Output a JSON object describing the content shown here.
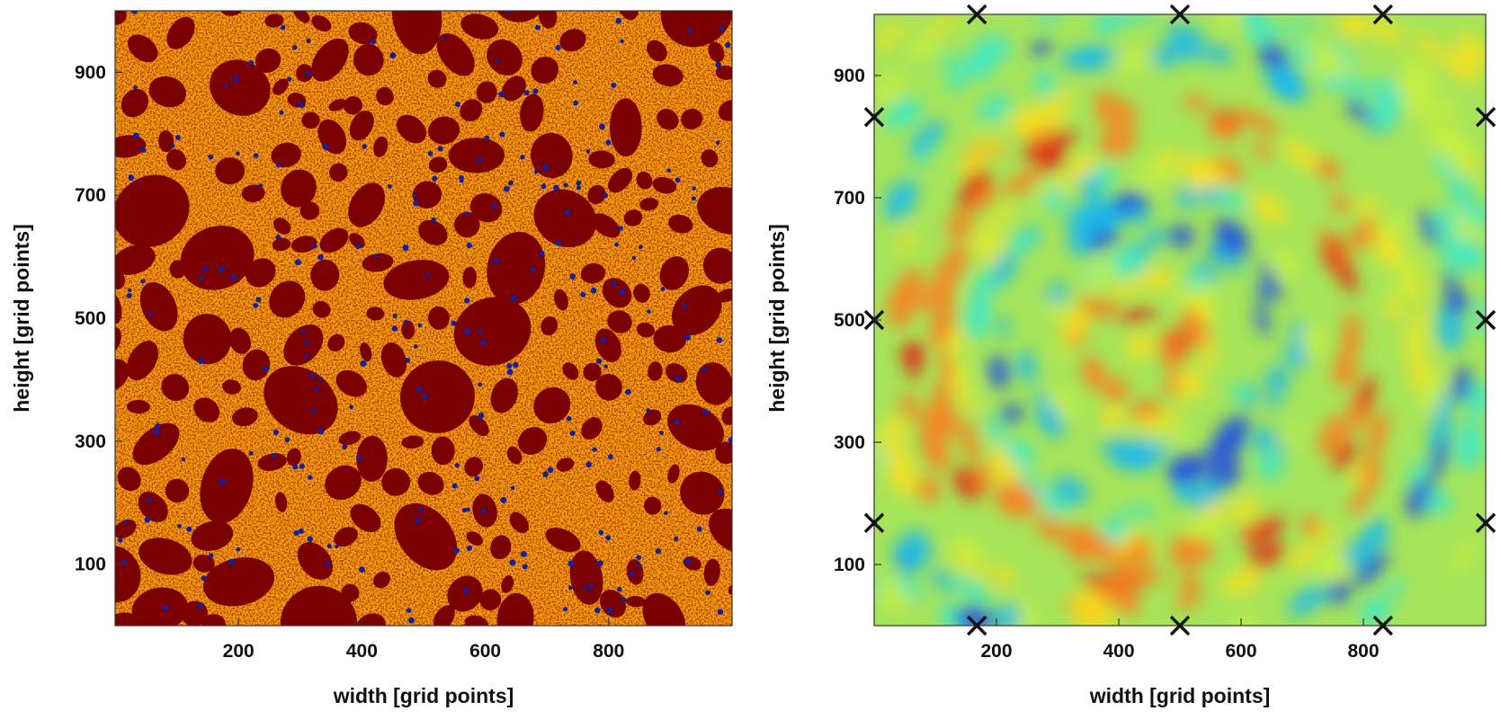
{
  "chart_data": [
    {
      "type": "heatmap",
      "xlabel": "width [grid points]",
      "ylabel": "height [grid points]",
      "xlim": [
        0,
        1000
      ],
      "ylim": [
        0,
        1000
      ],
      "x_ticks": [
        "200",
        "400",
        "600",
        "800"
      ],
      "y_ticks": [
        "100",
        "300",
        "500",
        "700",
        "900"
      ],
      "colors": {
        "aggregate": "#7a0000",
        "matrix": "#f2a010",
        "pores": "#1020a0"
      }
    },
    {
      "type": "heatmap",
      "xlabel": "width [grid points]",
      "ylabel": "height [grid points]",
      "xlim": [
        0,
        1000
      ],
      "ylim": [
        0,
        1000
      ],
      "x_ticks": [
        "200",
        "400",
        "600",
        "800"
      ],
      "y_ticks": [
        "100",
        "300",
        "500",
        "700",
        "900"
      ],
      "colormap": "jet",
      "markers": [
        {
          "x": 168,
          "y": 1000
        },
        {
          "x": 500,
          "y": 1000
        },
        {
          "x": 832,
          "y": 1000
        },
        {
          "x": 0,
          "y": 832
        },
        {
          "x": 0,
          "y": 500
        },
        {
          "x": 0,
          "y": 168
        },
        {
          "x": 1000,
          "y": 832
        },
        {
          "x": 1000,
          "y": 500
        },
        {
          "x": 1000,
          "y": 168
        },
        {
          "x": 168,
          "y": 0
        },
        {
          "x": 500,
          "y": 0
        },
        {
          "x": 832,
          "y": 0
        }
      ]
    }
  ]
}
